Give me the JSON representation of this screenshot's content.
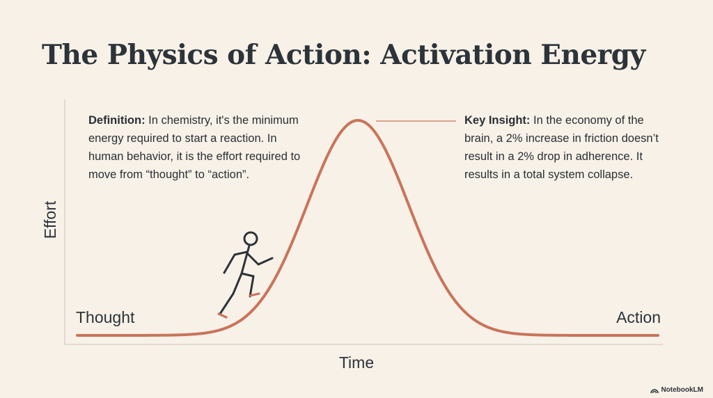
{
  "title": "The Physics of Action: Activation Energy",
  "definition": {
    "label": "Definition:",
    "text": " In chemistry, it's the minimum energy required to start a reaction. In human behavior, it is the effort required to move from “thought” to “action”."
  },
  "insight": {
    "label": "Key Insight:",
    "text": " In the economy of the brain, a 2% increase in friction doesn’t result in a 2% drop in adherence. It results in a total system collapse."
  },
  "axes": {
    "y_label": "Effort",
    "x_label": "Time"
  },
  "curve_labels": {
    "start": "Thought",
    "end": "Action"
  },
  "icons": {
    "figure": "climbing-person-icon",
    "watermark": "notebooklm-logo-icon"
  },
  "colors": {
    "curve": "#c9745a",
    "background": "#f7f1e8",
    "text": "#2c3339"
  },
  "watermark": "NotebookLM"
}
